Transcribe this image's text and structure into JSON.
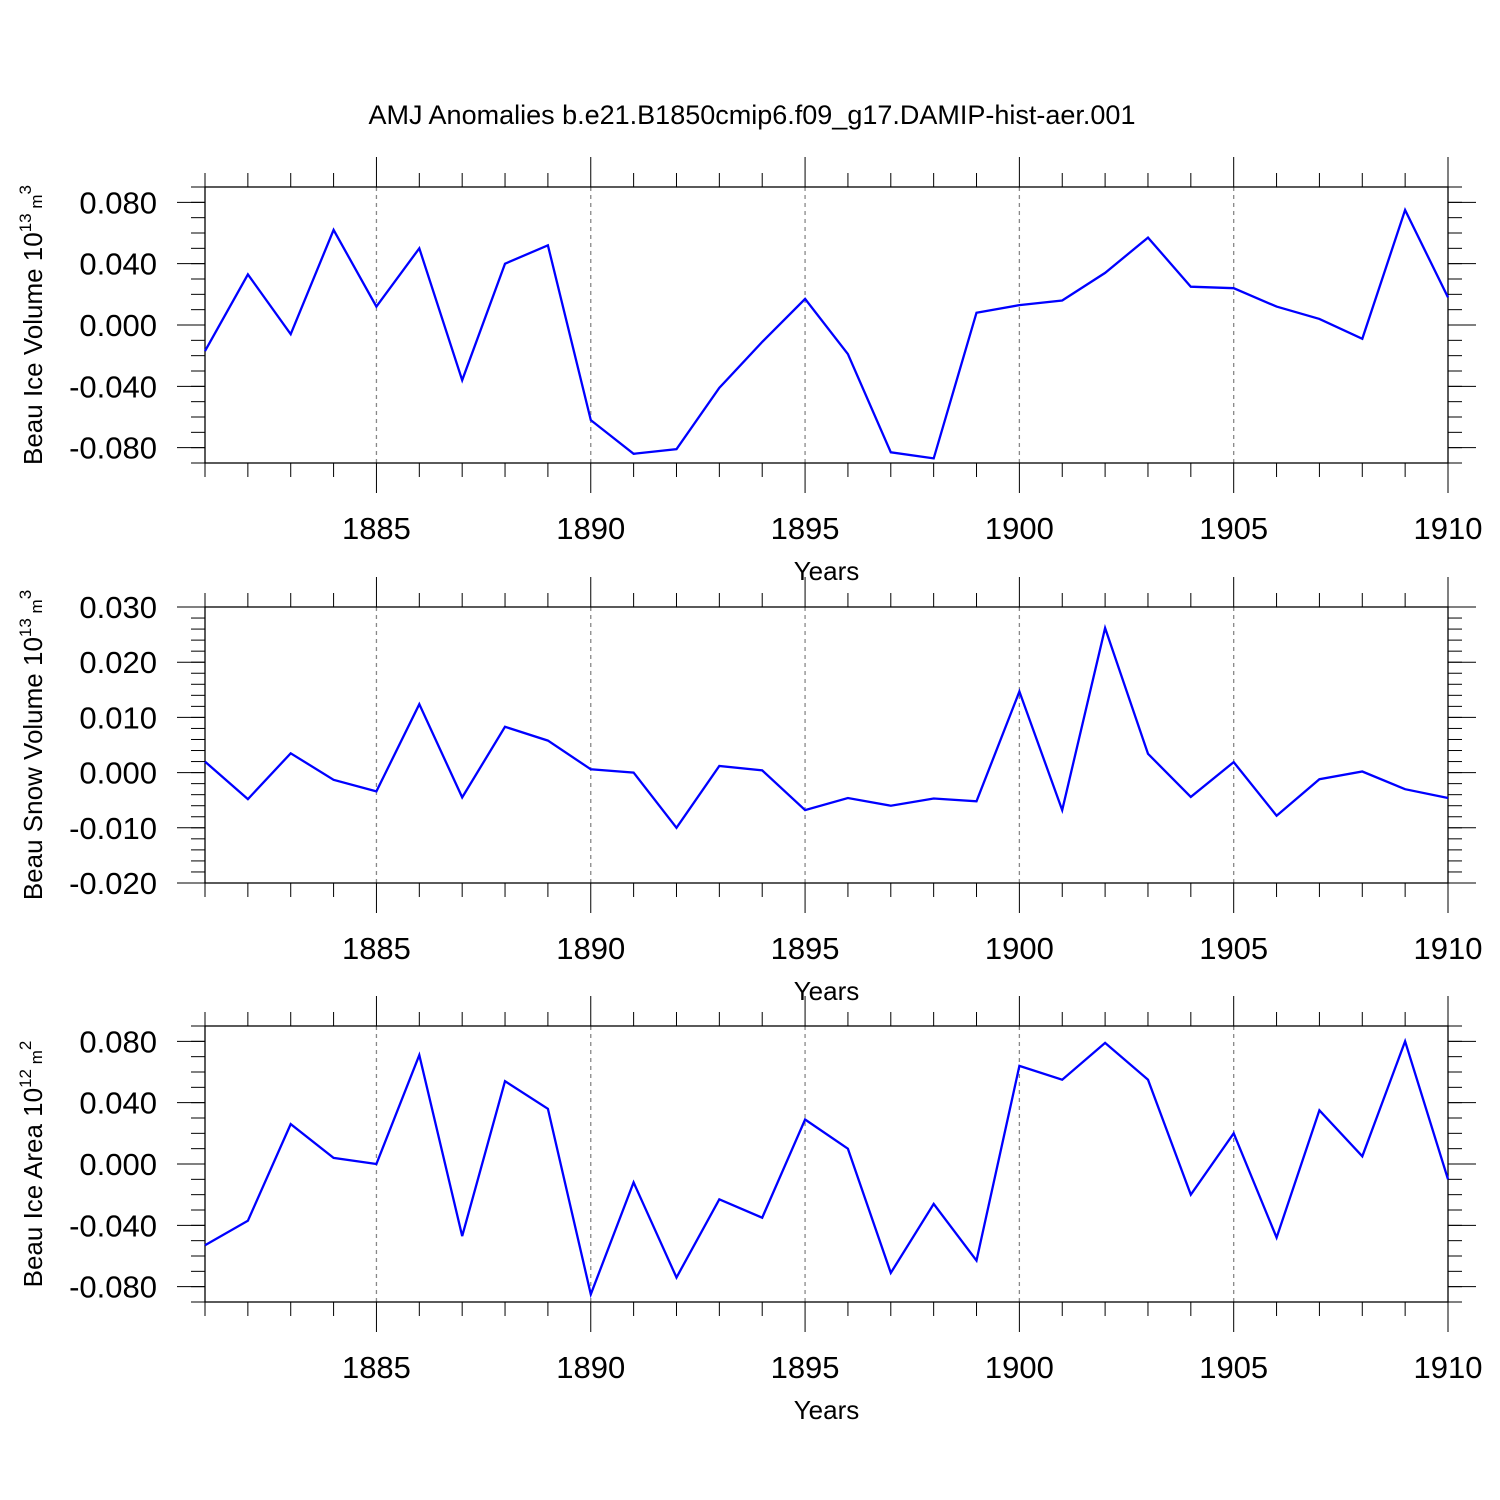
{
  "title": "AMJ Anomalies b.e21.B1850cmip6.f09_g17.DAMIP-hist-aer.001",
  "colors": {
    "series": "#0000ff",
    "axes": "#000000",
    "grid": "#888888"
  },
  "chart_data": [
    {
      "type": "line",
      "ylabel": {
        "text": "Beau Ice Volume 10",
        "exp": "13",
        "unit": " m",
        "unit_exp": "3"
      },
      "xlabel": "Years",
      "xlim": [
        1881,
        1910
      ],
      "ylim": [
        -0.09,
        0.09
      ],
      "x_ticks": [
        1885,
        1890,
        1895,
        1900,
        1905,
        1910
      ],
      "y_ticks": [
        {
          "v": 0.08,
          "label": "0.080"
        },
        {
          "v": 0.04,
          "label": "0.040"
        },
        {
          "v": 0.0,
          "label": "0.000"
        },
        {
          "v": -0.04,
          "label": "-0.040"
        },
        {
          "v": -0.08,
          "label": "-0.080"
        }
      ],
      "y_minor_step": 0.01,
      "grid": "vertical dashed at major x ticks",
      "series": [
        {
          "x": [
            1881,
            1882,
            1883,
            1884,
            1885,
            1886,
            1887,
            1888,
            1889,
            1890,
            1891,
            1892,
            1893,
            1894,
            1895,
            1896,
            1897,
            1898,
            1899,
            1900,
            1901,
            1902,
            1903,
            1904,
            1905,
            1906,
            1907,
            1908,
            1909,
            1910
          ],
          "values": [
            -0.017,
            0.033,
            -0.006,
            0.062,
            0.012,
            0.05,
            -0.036,
            0.04,
            0.052,
            -0.062,
            -0.084,
            -0.081,
            -0.041,
            -0.011,
            0.017,
            -0.019,
            -0.083,
            -0.087,
            0.008,
            0.013,
            0.016,
            0.034,
            0.057,
            0.025,
            0.024,
            0.012,
            0.004,
            -0.009,
            0.075,
            0.018
          ]
        }
      ]
    },
    {
      "type": "line",
      "ylabel": {
        "text": "Beau Snow Volume 10",
        "exp": "13",
        "unit": " m",
        "unit_exp": "3"
      },
      "xlabel": "Years",
      "xlim": [
        1881,
        1910
      ],
      "ylim": [
        -0.02,
        0.03
      ],
      "x_ticks": [
        1885,
        1890,
        1895,
        1900,
        1905,
        1910
      ],
      "y_ticks": [
        {
          "v": 0.03,
          "label": "0.030"
        },
        {
          "v": 0.02,
          "label": "0.020"
        },
        {
          "v": 0.01,
          "label": "0.010"
        },
        {
          "v": 0.0,
          "label": "0.000"
        },
        {
          "v": -0.01,
          "label": "-0.010"
        },
        {
          "v": -0.02,
          "label": "-0.020"
        }
      ],
      "y_minor_step": 0.002,
      "grid": "vertical dashed at major x ticks",
      "series": [
        {
          "x": [
            1881,
            1882,
            1883,
            1884,
            1885,
            1886,
            1887,
            1888,
            1889,
            1890,
            1891,
            1892,
            1893,
            1894,
            1895,
            1896,
            1897,
            1898,
            1899,
            1900,
            1901,
            1902,
            1903,
            1904,
            1905,
            1906,
            1907,
            1908,
            1909,
            1910
          ],
          "values": [
            0.002,
            -0.0048,
            0.0035,
            -0.0013,
            -0.0034,
            0.0124,
            -0.0045,
            0.0083,
            0.0058,
            0.0006,
            0.0,
            -0.01,
            0.0012,
            0.0004,
            -0.0068,
            -0.0046,
            -0.006,
            -0.0047,
            -0.0052,
            0.0147,
            -0.0068,
            0.0262,
            0.0034,
            -0.0044,
            0.0019,
            -0.0078,
            -0.0012,
            0.0002,
            -0.003,
            -0.0046
          ]
        }
      ]
    },
    {
      "type": "line",
      "ylabel": {
        "text": "Beau Ice Area 10",
        "exp": "12",
        "unit": " m",
        "unit_exp": "2"
      },
      "xlabel": "Years",
      "xlim": [
        1881,
        1910
      ],
      "ylim": [
        -0.09,
        0.09
      ],
      "x_ticks": [
        1885,
        1890,
        1895,
        1900,
        1905,
        1910
      ],
      "y_ticks": [
        {
          "v": 0.08,
          "label": "0.080"
        },
        {
          "v": 0.04,
          "label": "0.040"
        },
        {
          "v": 0.0,
          "label": "0.000"
        },
        {
          "v": -0.04,
          "label": "-0.040"
        },
        {
          "v": -0.08,
          "label": "-0.080"
        }
      ],
      "y_minor_step": 0.01,
      "grid": "vertical dashed at major x ticks",
      "series": [
        {
          "x": [
            1881,
            1882,
            1883,
            1884,
            1885,
            1886,
            1887,
            1888,
            1889,
            1890,
            1891,
            1892,
            1893,
            1894,
            1895,
            1896,
            1897,
            1898,
            1899,
            1900,
            1901,
            1902,
            1903,
            1904,
            1905,
            1906,
            1907,
            1908,
            1909,
            1910
          ],
          "values": [
            -0.053,
            -0.037,
            0.026,
            0.004,
            0.0,
            0.071,
            -0.047,
            0.054,
            0.036,
            -0.085,
            -0.012,
            -0.074,
            -0.023,
            -0.035,
            0.029,
            0.01,
            -0.071,
            -0.026,
            -0.063,
            0.064,
            0.055,
            0.079,
            0.055,
            -0.02,
            0.02,
            -0.048,
            0.035,
            0.005,
            0.08,
            -0.01
          ]
        }
      ]
    }
  ]
}
